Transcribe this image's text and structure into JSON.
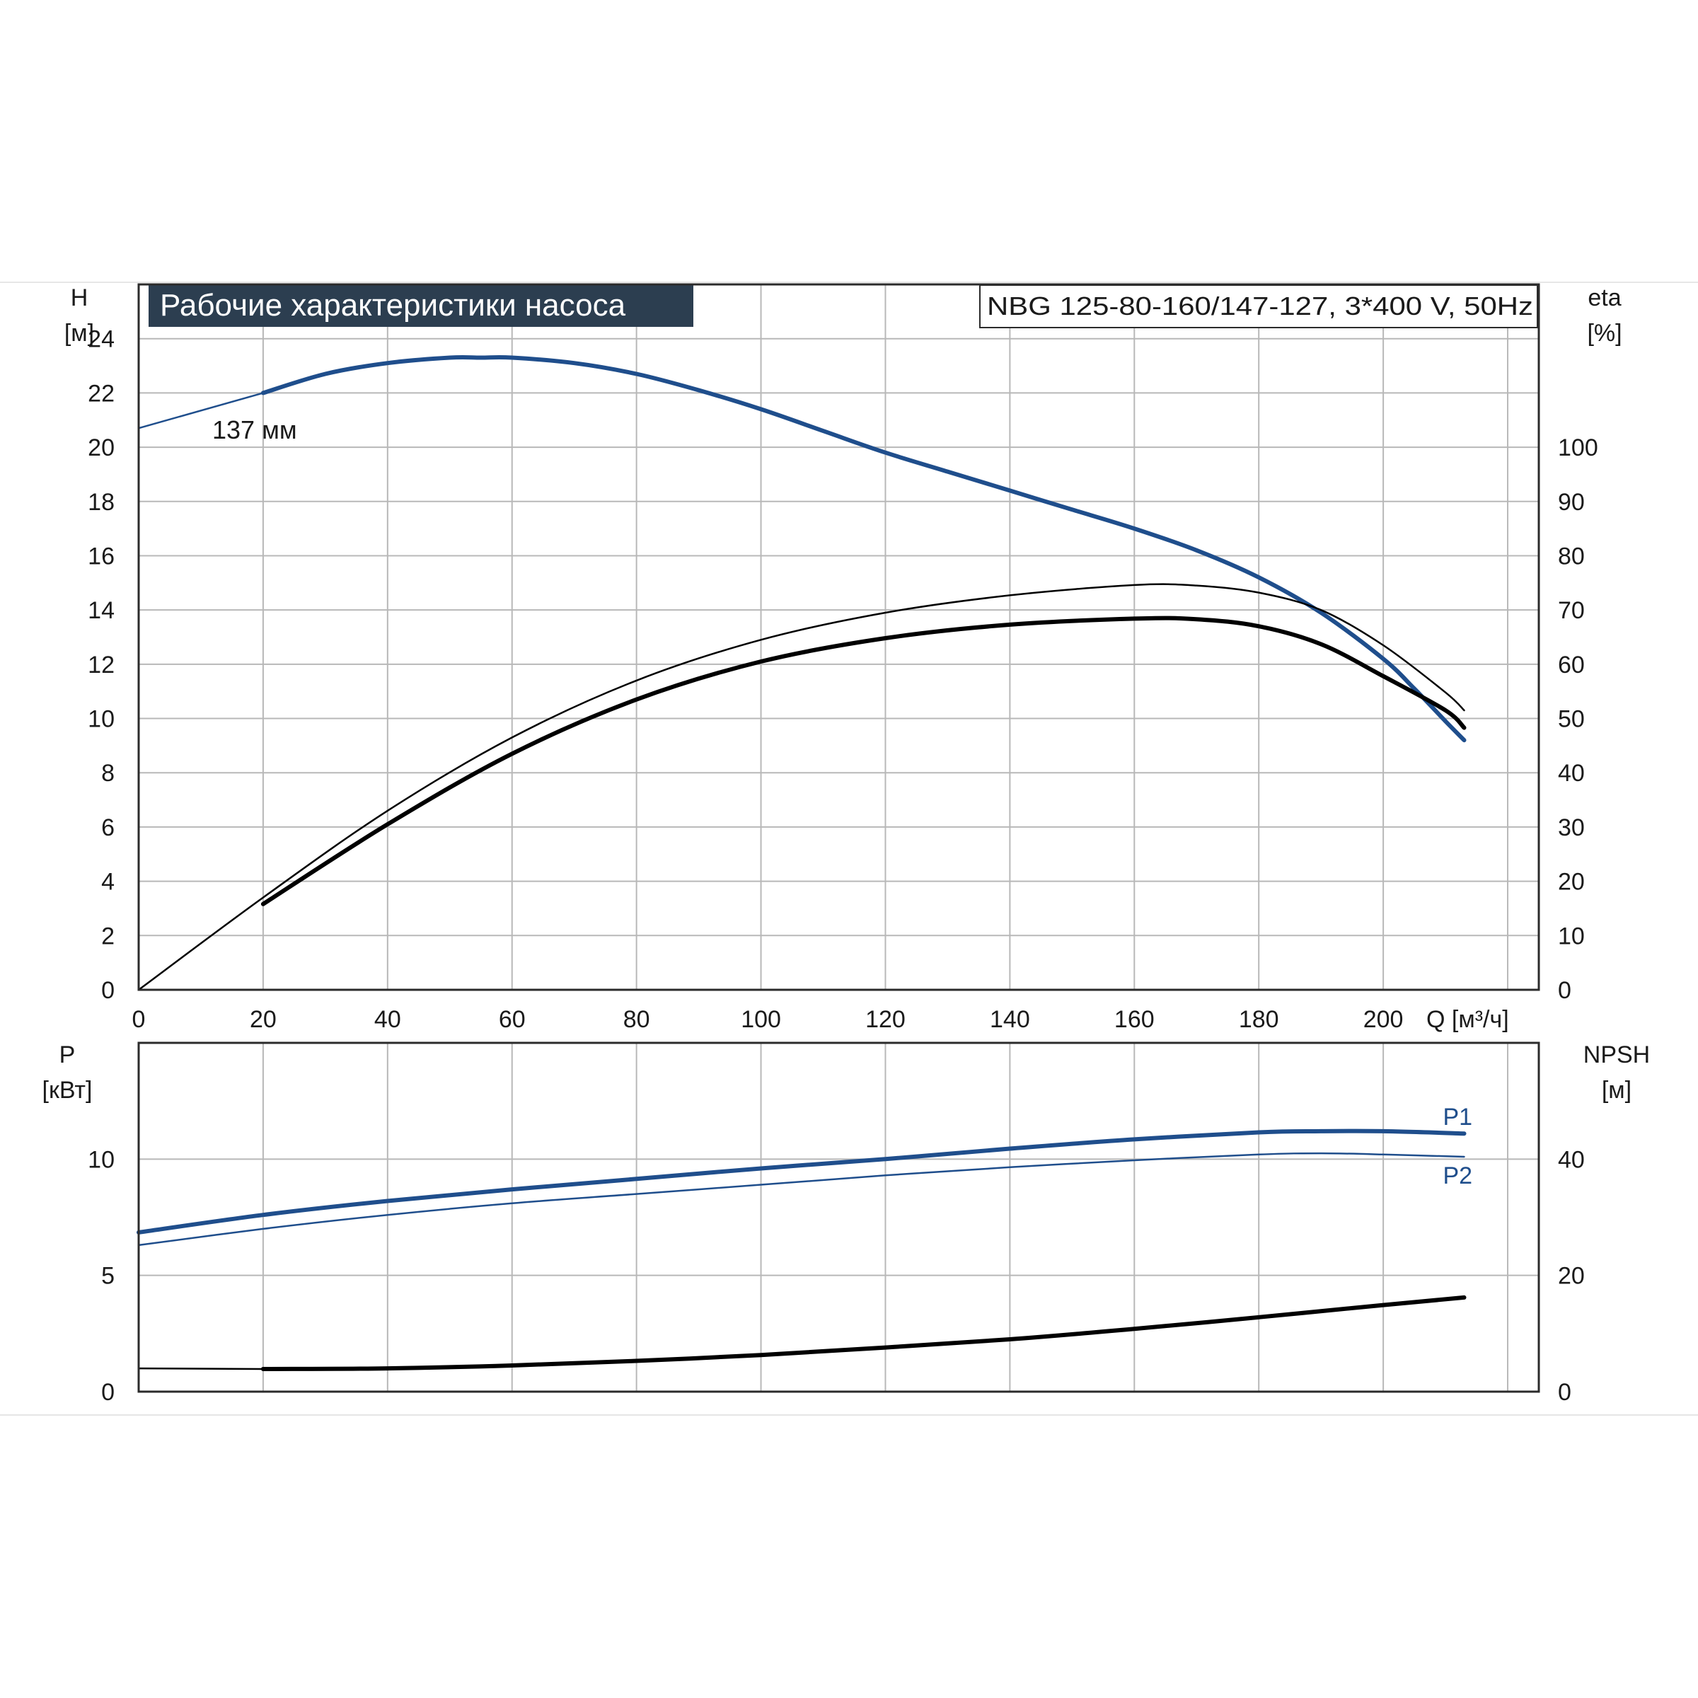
{
  "title": "Рабочие характеристики насоса",
  "model_label": "NBG 125-80-160/147-127, 3*400 V, 50Hz",
  "colors": {
    "title_bg": "#2c3e50",
    "blue": "#1f4e8c",
    "black": "#000000",
    "grid": "#b8b8b8"
  },
  "chart_data": [
    {
      "type": "line",
      "xlabel": "Q [м³/ч]",
      "ylabel_left": "H\n[м]",
      "ylabel_right": "eta\n[%]",
      "xlim": [
        0,
        225
      ],
      "ylim_left": [
        0,
        26
      ],
      "ylim_right": [
        0,
        130
      ],
      "x_ticks": [
        "0",
        "20",
        "40",
        "60",
        "80",
        "100",
        "120",
        "140",
        "160",
        "180",
        "200"
      ],
      "y_left_ticks": [
        "0",
        "2",
        "4",
        "6",
        "8",
        "10",
        "12",
        "14",
        "16",
        "18",
        "20",
        "22",
        "24"
      ],
      "y_right_ticks": [
        "0",
        "10",
        "20",
        "30",
        "40",
        "50",
        "60",
        "70",
        "80",
        "90",
        "100"
      ],
      "grid": true,
      "annotation": "137 мм",
      "series": [
        {
          "name": "",
          "axis": "left",
          "style": "thin-blue",
          "x": [
            0,
            20
          ],
          "y": [
            20.7,
            22.0
          ]
        },
        {
          "name": "",
          "axis": "left",
          "style": "thick-blue",
          "x": [
            20,
            30,
            40,
            50,
            55,
            60,
            70,
            80,
            90,
            100,
            110,
            120,
            130,
            140,
            150,
            160,
            170,
            180,
            190,
            200,
            205,
            210,
            213
          ],
          "y": [
            22.0,
            22.7,
            23.1,
            23.3,
            23.3,
            23.3,
            23.1,
            22.7,
            22.1,
            21.4,
            20.6,
            19.8,
            19.1,
            18.4,
            17.7,
            17.0,
            16.2,
            15.2,
            13.9,
            12.2,
            11.1,
            9.9,
            9.2
          ]
        },
        {
          "name": "",
          "axis": "right",
          "style": "thin-black",
          "x": [
            0,
            20,
            40,
            60,
            80,
            100,
            120,
            140,
            160,
            170,
            180,
            190,
            200,
            210,
            213
          ],
          "y": [
            0,
            17.0,
            33.0,
            46.5,
            57.0,
            64.5,
            69.5,
            72.7,
            74.6,
            74.5,
            73.2,
            70.0,
            63.5,
            54.8,
            51.5
          ]
        },
        {
          "name": "",
          "axis": "right",
          "style": "thick-black",
          "x": [
            20,
            40,
            60,
            80,
            100,
            120,
            140,
            160,
            170,
            180,
            190,
            200,
            210,
            213
          ],
          "y": [
            15.8,
            30.5,
            43.5,
            53.5,
            60.5,
            64.8,
            67.3,
            68.4,
            68.3,
            67.0,
            63.7,
            57.8,
            51.5,
            48.3
          ]
        }
      ]
    },
    {
      "type": "line",
      "ylabel_left": "P\n[кВт]",
      "ylabel_right": "NPSH\n[м]",
      "xlim": [
        0,
        225
      ],
      "ylim_left": [
        0,
        15
      ],
      "ylim_right": [
        0,
        60
      ],
      "y_left_ticks": [
        "0",
        "5",
        "10"
      ],
      "y_right_ticks": [
        "0",
        "20",
        "40"
      ],
      "grid": true,
      "series": [
        {
          "name": "P1",
          "axis": "left",
          "style": "thick-blue",
          "x": [
            0,
            20,
            40,
            60,
            80,
            100,
            120,
            140,
            160,
            180,
            190,
            200,
            213
          ],
          "y": [
            6.85,
            7.6,
            8.2,
            8.7,
            9.15,
            9.6,
            10.0,
            10.45,
            10.85,
            11.15,
            11.2,
            11.2,
            11.1
          ]
        },
        {
          "name": "P2",
          "axis": "left",
          "style": "thin-blue",
          "x": [
            0,
            20,
            40,
            60,
            80,
            100,
            120,
            140,
            160,
            180,
            190,
            200,
            213
          ],
          "y": [
            6.3,
            7.0,
            7.6,
            8.1,
            8.5,
            8.9,
            9.3,
            9.65,
            9.95,
            10.2,
            10.25,
            10.2,
            10.1
          ]
        },
        {
          "name": "",
          "axis": "right",
          "style": "thin-black",
          "x": [
            0,
            20
          ],
          "y": [
            4.0,
            3.9
          ]
        },
        {
          "name": "",
          "axis": "right",
          "style": "thick-black",
          "x": [
            20,
            40,
            60,
            80,
            100,
            120,
            140,
            160,
            180,
            200,
            213
          ],
          "y": [
            3.9,
            4.0,
            4.5,
            5.3,
            6.3,
            7.6,
            9.0,
            10.8,
            12.8,
            14.9,
            16.2
          ]
        }
      ]
    }
  ]
}
